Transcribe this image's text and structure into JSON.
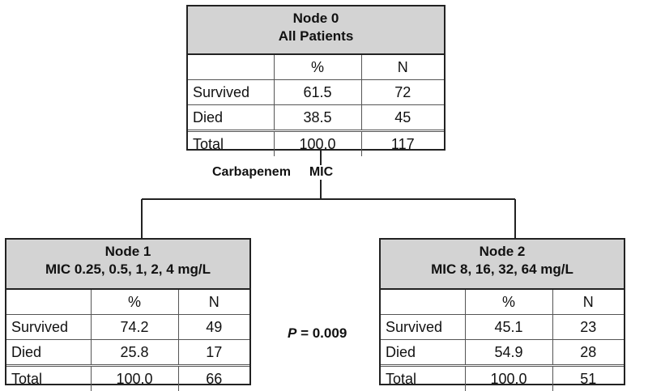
{
  "split_label_left": "Carbapenem",
  "split_label_right": "MIC",
  "p_value_symbol": "P",
  "p_value_text": "= 0.009",
  "nodes": [
    {
      "title": "Node 0",
      "subtitle": "All Patients",
      "col_pct": "%",
      "col_n": "N",
      "rows": [
        {
          "label": "Survived",
          "pct": "61.5",
          "n": "72"
        },
        {
          "label": "Died",
          "pct": "38.5",
          "n": "45"
        },
        {
          "label": "Total",
          "pct": "100.0",
          "n": "117"
        }
      ]
    },
    {
      "title": "Node 1",
      "subtitle": "MIC 0.25, 0.5, 1, 2, 4 mg/L",
      "col_pct": "%",
      "col_n": "N",
      "rows": [
        {
          "label": "Survived",
          "pct": "74.2",
          "n": "49"
        },
        {
          "label": "Died",
          "pct": "25.8",
          "n": "17"
        },
        {
          "label": "Total",
          "pct": "100.0",
          "n": "66"
        }
      ]
    },
    {
      "title": "Node 2",
      "subtitle": "MIC 8, 16, 32, 64 mg/L",
      "col_pct": "%",
      "col_n": "N",
      "rows": [
        {
          "label": "Survived",
          "pct": "45.1",
          "n": "23"
        },
        {
          "label": "Died",
          "pct": "54.9",
          "n": "28"
        },
        {
          "label": "Total",
          "pct": "100.0",
          "n": "51"
        }
      ]
    }
  ]
}
